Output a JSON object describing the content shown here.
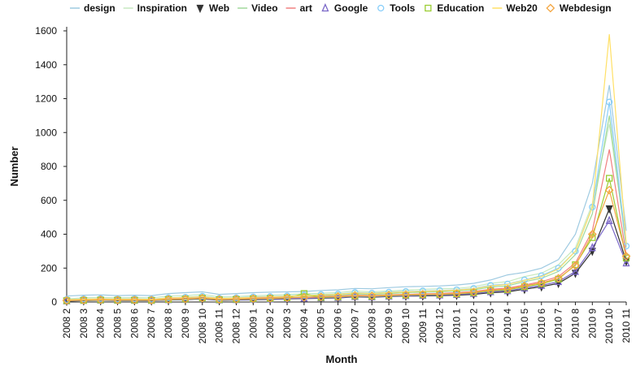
{
  "chart_data": {
    "type": "line",
    "title": "",
    "xlabel": "Month",
    "ylabel": "Number",
    "ylim": [
      0,
      1600
    ],
    "yticks": [
      0,
      200,
      400,
      600,
      800,
      1000,
      1200,
      1400,
      1600
    ],
    "legend_position": "top",
    "grid": false,
    "categories": [
      "2008 2",
      "2008 3",
      "2008 4",
      "2008 5",
      "2008 6",
      "2008 7",
      "2008 8",
      "2008 9",
      "2008 10",
      "2008 11",
      "2008 12",
      "2009 1",
      "2009 2",
      "2009 3",
      "2009 4",
      "2009 5",
      "2009 6",
      "2009 7",
      "2009 8",
      "2009 9",
      "2009 10",
      "2009 11",
      "2009 12",
      "2010 1",
      "2010 2",
      "2010 3",
      "2010 4",
      "2010 5",
      "2010 6",
      "2010 7",
      "2010 8",
      "2010 9",
      "2010 10",
      "2010 11"
    ],
    "series": [
      {
        "name": "design",
        "color": "#9ecae1",
        "marker": "none",
        "values": [
          35,
          40,
          42,
          38,
          40,
          38,
          50,
          55,
          60,
          45,
          50,
          55,
          58,
          60,
          62,
          68,
          72,
          80,
          78,
          85,
          90,
          92,
          95,
          100,
          110,
          130,
          160,
          175,
          200,
          250,
          400,
          700,
          1280,
          420
        ]
      },
      {
        "name": "Inspiration",
        "color": "#c7e9c0",
        "marker": "none",
        "values": [
          18,
          25,
          28,
          25,
          27,
          25,
          35,
          38,
          45,
          30,
          32,
          38,
          40,
          45,
          48,
          52,
          55,
          65,
          60,
          65,
          70,
          75,
          78,
          80,
          90,
          110,
          120,
          150,
          170,
          220,
          320,
          580,
          1050,
          350
        ]
      },
      {
        "name": "Web",
        "color": "#333333",
        "marker": "triangle-down",
        "values": [
          5,
          8,
          10,
          9,
          9,
          8,
          12,
          14,
          18,
          10,
          12,
          14,
          15,
          18,
          20,
          22,
          24,
          30,
          28,
          32,
          35,
          36,
          38,
          40,
          45,
          55,
          60,
          75,
          90,
          110,
          170,
          300,
          550,
          240
        ]
      },
      {
        "name": "Video",
        "color": "#a1d99b",
        "marker": "none",
        "values": [
          12,
          15,
          18,
          16,
          17,
          15,
          22,
          25,
          30,
          20,
          22,
          26,
          28,
          32,
          35,
          38,
          40,
          48,
          45,
          50,
          55,
          58,
          60,
          65,
          72,
          88,
          95,
          120,
          140,
          180,
          280,
          520,
          1100,
          320
        ]
      },
      {
        "name": "art",
        "color": "#f08080",
        "marker": "none",
        "values": [
          10,
          12,
          14,
          13,
          14,
          12,
          18,
          20,
          24,
          16,
          18,
          22,
          24,
          26,
          28,
          32,
          34,
          40,
          38,
          42,
          45,
          48,
          50,
          55,
          62,
          75,
          82,
          100,
          120,
          150,
          230,
          420,
          900,
          280
        ]
      },
      {
        "name": "Google",
        "color": "#7b68c8",
        "marker": "triangle-up",
        "values": [
          6,
          9,
          11,
          10,
          10,
          9,
          13,
          15,
          20,
          12,
          14,
          16,
          17,
          20,
          22,
          24,
          26,
          32,
          30,
          34,
          37,
          39,
          41,
          44,
          50,
          60,
          66,
          82,
          98,
          120,
          180,
          320,
          480,
          230
        ]
      },
      {
        "name": "Tools",
        "color": "#87cefa",
        "marker": "circle",
        "values": [
          15,
          18,
          20,
          18,
          19,
          17,
          25,
          28,
          34,
          22,
          25,
          30,
          32,
          36,
          40,
          44,
          47,
          56,
          52,
          58,
          62,
          65,
          68,
          72,
          80,
          98,
          106,
          130,
          155,
          200,
          300,
          560,
          1180,
          330
        ]
      },
      {
        "name": "Education",
        "color": "#9acd32",
        "marker": "square",
        "values": [
          8,
          10,
          12,
          11,
          11,
          10,
          15,
          17,
          22,
          14,
          16,
          19,
          21,
          24,
          50,
          27,
          30,
          36,
          34,
          38,
          41,
          43,
          45,
          48,
          55,
          66,
          72,
          90,
          108,
          135,
          220,
          380,
          730,
          260
        ]
      },
      {
        "name": "Web20",
        "color": "#ffe066",
        "marker": "none",
        "values": [
          14,
          17,
          19,
          17,
          18,
          16,
          24,
          27,
          32,
          21,
          24,
          28,
          30,
          34,
          38,
          42,
          45,
          54,
          50,
          56,
          60,
          63,
          66,
          70,
          78,
          95,
          104,
          128,
          150,
          195,
          300,
          560,
          1580,
          340
        ]
      },
      {
        "name": "Webdesign",
        "color": "#f4a742",
        "marker": "diamond",
        "values": [
          9,
          11,
          13,
          12,
          12,
          11,
          16,
          18,
          23,
          15,
          17,
          20,
          22,
          25,
          27,
          30,
          32,
          38,
          36,
          40,
          43,
          45,
          47,
          50,
          58,
          70,
          76,
          95,
          112,
          140,
          215,
          400,
          660,
          270
        ]
      }
    ]
  }
}
